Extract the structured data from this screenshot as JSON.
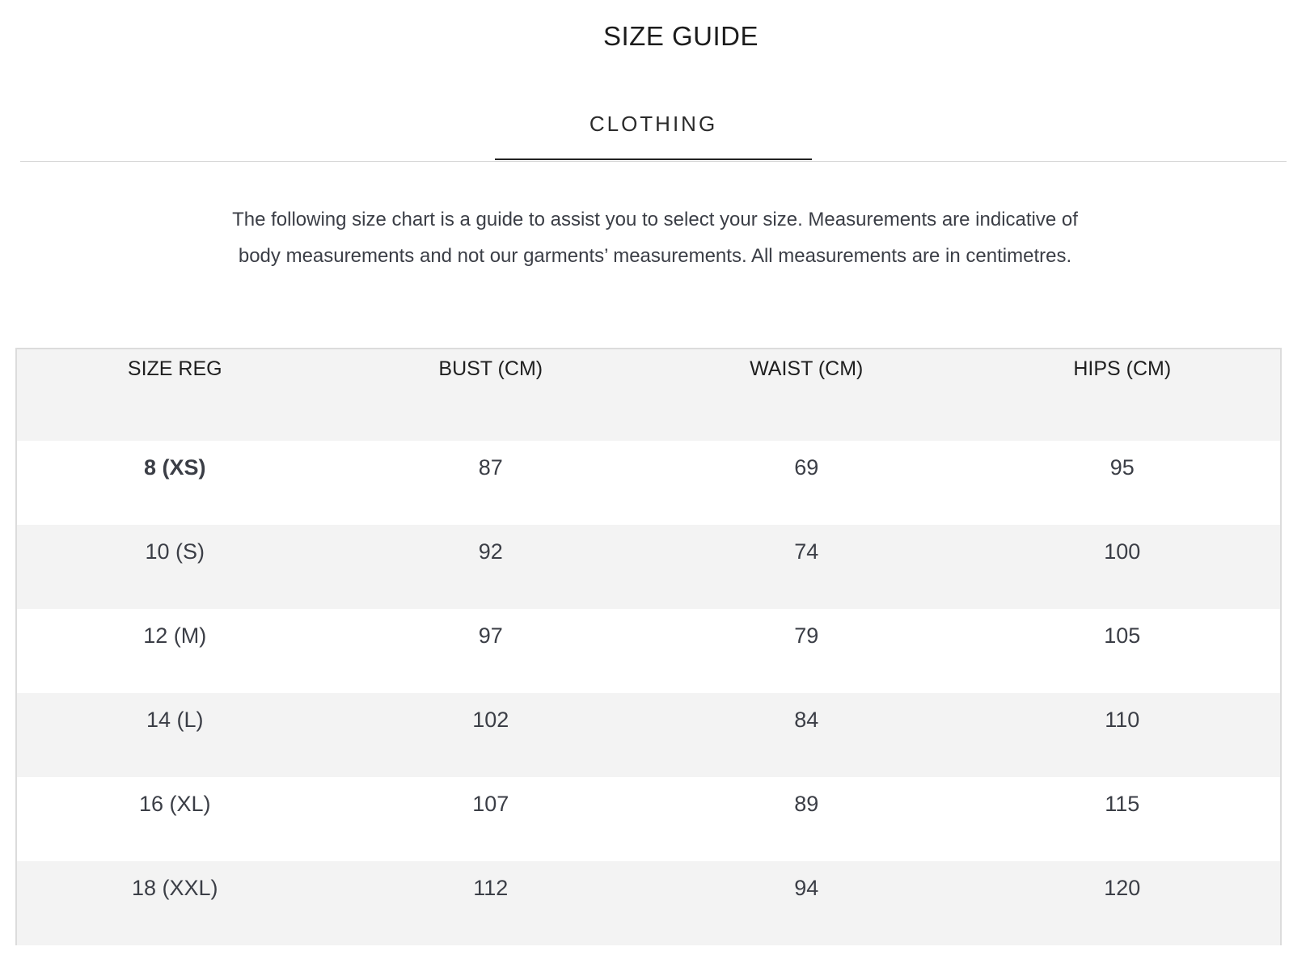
{
  "title": "SIZE GUIDE",
  "tabs": [
    {
      "label": "CLOTHING",
      "active": true
    }
  ],
  "intro": "The following size chart is a guide to assist you to select your size. Measurements are indicative of body measurements and not our garments’ measurements. All measurements are in centimetres.",
  "table": {
    "headers": [
      "SIZE REG",
      "BUST (CM)",
      "WAIST (CM)",
      "HIPS (CM)"
    ],
    "rows": [
      [
        "8 (XS)",
        "87",
        "69",
        "95"
      ],
      [
        "10 (S)",
        "92",
        "74",
        "100"
      ],
      [
        "12 (M)",
        "97",
        "79",
        "105"
      ],
      [
        "14 (L)",
        "102",
        "84",
        "110"
      ],
      [
        "16 (XL)",
        "107",
        "89",
        "115"
      ],
      [
        "18 (XXL)",
        "112",
        "94",
        "120"
      ]
    ]
  }
}
